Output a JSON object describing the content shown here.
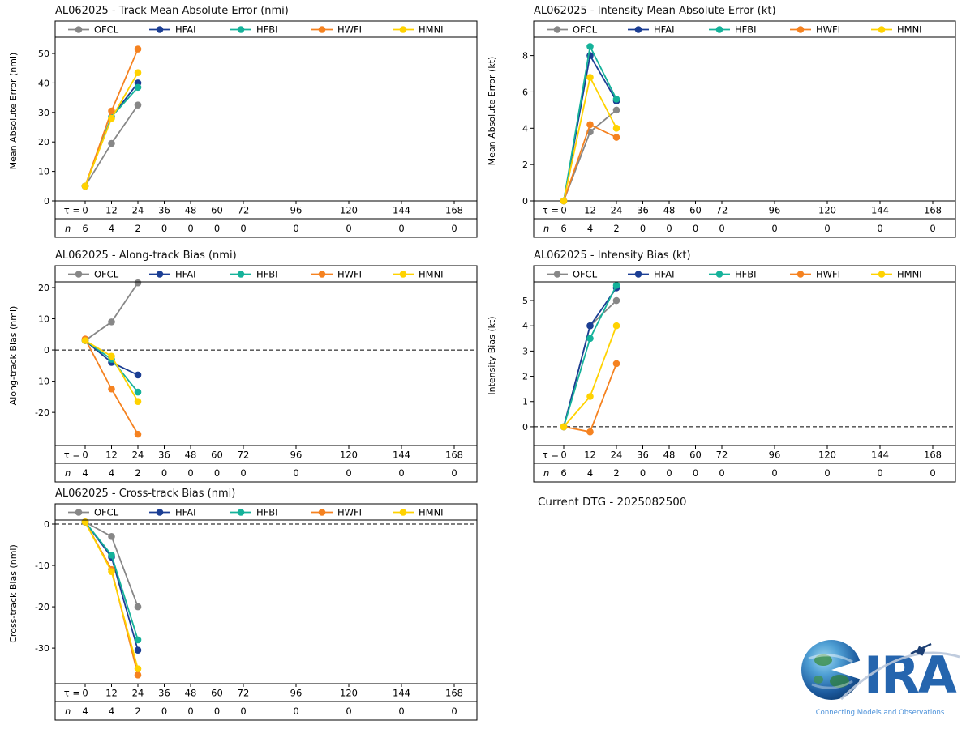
{
  "models": [
    {
      "name": "OFCL",
      "color": "#878787"
    },
    {
      "name": "HFAI",
      "color": "#1b3e94"
    },
    {
      "name": "HFBI",
      "color": "#15b29a"
    },
    {
      "name": "HWFI",
      "color": "#f58220"
    },
    {
      "name": "HMNI",
      "color": "#ffd200"
    }
  ],
  "taus": [
    0,
    12,
    24,
    36,
    48,
    60,
    72,
    96,
    120,
    144,
    168
  ],
  "axis": {
    "tau_prefix": "τ =",
    "n_label": "n"
  },
  "footer": {
    "current_dtg": "Current DTG - 2025082500"
  },
  "logo": {
    "text": "CIRA",
    "tagline": "Connecting Models and Observations",
    "color": "#2565ae"
  },
  "chart_data": [
    {
      "type": "line",
      "title": "AL062025 - Track Mean Absolute Error (nmi)",
      "ylabel": "Mean Absolute Error (nmi)",
      "ylim": [
        0,
        61
      ],
      "yticks": [
        0,
        10,
        20,
        30,
        40,
        50
      ],
      "zero_line": false,
      "legend_position": "top",
      "x": [
        0,
        12,
        24
      ],
      "series": [
        {
          "name": "OFCL",
          "values": [
            5,
            19.5,
            32.5
          ]
        },
        {
          "name": "HFAI",
          "values": [
            5,
            28.5,
            40
          ]
        },
        {
          "name": "HFBI",
          "values": [
            5,
            28.5,
            38.5
          ]
        },
        {
          "name": "HWFI",
          "values": [
            5,
            30.5,
            51.5
          ]
        },
        {
          "name": "HMNI",
          "values": [
            5,
            28,
            43.5
          ]
        }
      ],
      "n_counts": [
        6,
        4,
        2,
        0,
        0,
        0,
        0,
        0,
        0,
        0,
        0
      ]
    },
    {
      "type": "line",
      "title": "AL062025 - Intensity Mean Absolute Error (kt)",
      "ylabel": "Mean Absolute Error (kt)",
      "ylim": [
        0,
        9.9
      ],
      "yticks": [
        0,
        2,
        4,
        6,
        8
      ],
      "zero_line": false,
      "legend_position": "top",
      "x": [
        0,
        12,
        24
      ],
      "series": [
        {
          "name": "OFCL",
          "values": [
            0,
            3.8,
            5.0
          ]
        },
        {
          "name": "HFAI",
          "values": [
            0,
            8.0,
            5.5
          ]
        },
        {
          "name": "HFBI",
          "values": [
            0,
            8.5,
            5.6
          ]
        },
        {
          "name": "HWFI",
          "values": [
            0,
            4.2,
            3.5
          ]
        },
        {
          "name": "HMNI",
          "values": [
            0,
            6.8,
            4.0
          ]
        }
      ],
      "n_counts": [
        6,
        4,
        2,
        0,
        0,
        0,
        0,
        0,
        0,
        0,
        0
      ]
    },
    {
      "type": "line",
      "title": "AL062025 - Along-track Bias (nmi)",
      "ylabel": "Along-track Bias (nmi)",
      "ylim": [
        -30.6,
        27
      ],
      "yticks": [
        -20,
        -10,
        0,
        10,
        20
      ],
      "zero_line": true,
      "legend_position": "top",
      "x": [
        0,
        12,
        24
      ],
      "series": [
        {
          "name": "OFCL",
          "values": [
            3,
            9,
            21.5
          ]
        },
        {
          "name": "HFAI",
          "values": [
            3,
            -4,
            -8
          ]
        },
        {
          "name": "HFBI",
          "values": [
            3,
            -3,
            -13.5
          ]
        },
        {
          "name": "HWFI",
          "values": [
            3.5,
            -12.5,
            -27
          ]
        },
        {
          "name": "HMNI",
          "values": [
            3,
            -2,
            -16.5
          ]
        }
      ],
      "n_counts": [
        4,
        4,
        2,
        0,
        0,
        0,
        0,
        0,
        0,
        0,
        0
      ]
    },
    {
      "type": "line",
      "title": "AL062025 - Intensity Bias (kt)",
      "ylabel": "Intensity Bias (kt)",
      "ylim": [
        -0.74,
        6.38
      ],
      "yticks": [
        0,
        1,
        2,
        3,
        4,
        5
      ],
      "zero_line": true,
      "legend_position": "top",
      "x": [
        0,
        12,
        24
      ],
      "series": [
        {
          "name": "OFCL",
          "values": [
            0,
            4,
            5
          ]
        },
        {
          "name": "HFAI",
          "values": [
            0,
            4,
            5.5
          ]
        },
        {
          "name": "HFBI",
          "values": [
            0,
            3.5,
            5.6
          ]
        },
        {
          "name": "HWFI",
          "values": [
            0,
            -0.2,
            2.5
          ]
        },
        {
          "name": "HMNI",
          "values": [
            0,
            1.2,
            4
          ]
        }
      ],
      "n_counts": [
        6,
        4,
        2,
        0,
        0,
        0,
        0,
        0,
        0,
        0,
        0
      ]
    },
    {
      "type": "line",
      "title": "AL062025 - Cross-track Bias (nmi)",
      "ylabel": "Cross-track Bias (nmi)",
      "ylim": [
        -38.6,
        4.9
      ],
      "yticks": [
        0,
        -10,
        -20,
        -30
      ],
      "zero_line": true,
      "legend_position": "top",
      "x": [
        0,
        12,
        24
      ],
      "series": [
        {
          "name": "OFCL",
          "values": [
            0.5,
            -3,
            -20
          ]
        },
        {
          "name": "HFAI",
          "values": [
            0.5,
            -8,
            -30.5
          ]
        },
        {
          "name": "HFBI",
          "values": [
            0.5,
            -7.5,
            -28
          ]
        },
        {
          "name": "HWFI",
          "values": [
            0.5,
            -11,
            -36.5
          ]
        },
        {
          "name": "HMNI",
          "values": [
            0.5,
            -11.5,
            -35
          ]
        }
      ],
      "n_counts": [
        4,
        4,
        2,
        0,
        0,
        0,
        0,
        0,
        0,
        0,
        0
      ]
    }
  ]
}
